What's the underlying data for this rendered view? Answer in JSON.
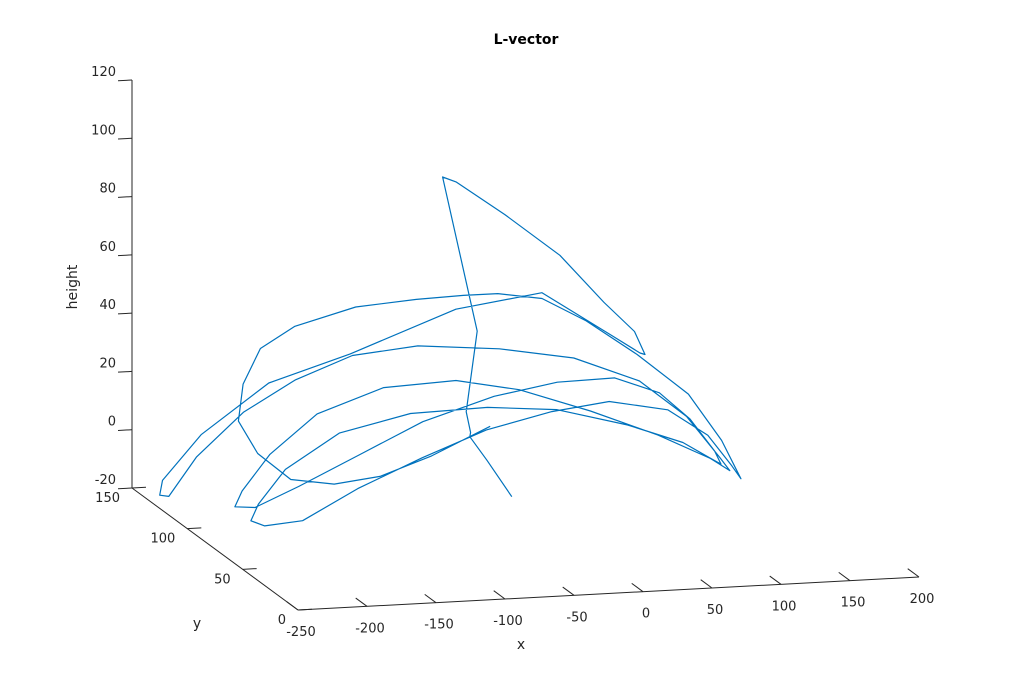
{
  "chart_data": {
    "type": "line",
    "projection": "3d",
    "title": "L-vector",
    "xlabel": "x",
    "ylabel": "y",
    "zlabel": "height",
    "xlim": [
      -250,
      200
    ],
    "ylim": [
      0,
      150
    ],
    "zlim": [
      -20,
      120
    ],
    "xticks": [
      "-250",
      "-200",
      "-150",
      "-100",
      "-50",
      "0",
      "50",
      "100",
      "150",
      "200"
    ],
    "yticks": [
      "0",
      "50",
      "100",
      "150"
    ],
    "zticks": [
      "-20",
      "0",
      "20",
      "40",
      "60",
      "80",
      "100",
      "120"
    ],
    "grid": false,
    "color": "#0072BD",
    "series": [
      {
        "values": [
          [
            -55,
            50,
            0
          ],
          [
            -65,
            60,
            10
          ],
          [
            -71,
            68,
            16
          ],
          [
            -72,
            66,
            18
          ],
          [
            -72,
            70,
            24
          ],
          [
            -60,
            75,
            50
          ],
          [
            -65,
            100,
            96
          ],
          [
            -55,
            100,
            94
          ],
          [
            -20,
            100,
            82
          ],
          [
            20,
            100,
            67
          ],
          [
            52,
            100,
            50
          ],
          [
            70,
            95,
            41
          ],
          [
            72,
            88,
            35
          ],
          [
            62,
            80,
            38
          ],
          [
            40,
            80,
            45
          ],
          [
            -5,
            85,
            59
          ],
          [
            -65,
            88,
            54
          ],
          [
            -140,
            90,
            40
          ],
          [
            -195,
            95,
            30
          ],
          [
            -240,
            100,
            12
          ],
          [
            -268,
            100,
            -3
          ],
          [
            -270,
            100,
            -8
          ],
          [
            -265,
            98,
            -8
          ],
          [
            -245,
            98,
            5
          ],
          [
            -215,
            93,
            21
          ],
          [
            -180,
            90,
            32
          ],
          [
            -140,
            88,
            40
          ],
          [
            -95,
            85,
            43
          ],
          [
            -40,
            80,
            42
          ],
          [
            10,
            75,
            39
          ],
          [
            52,
            68,
            32
          ],
          [
            78,
            58,
            22
          ],
          [
            92,
            45,
            11
          ],
          [
            95,
            40,
            8
          ],
          [
            85,
            45,
            11
          ],
          [
            55,
            55,
            17
          ],
          [
            10,
            60,
            25
          ],
          [
            -40,
            62,
            33
          ],
          [
            -85,
            63,
            37
          ],
          [
            -135,
            66,
            35
          ],
          [
            -180,
            70,
            26
          ],
          [
            -212,
            73,
            12
          ],
          [
            -232,
            73,
            0
          ],
          [
            -238,
            72,
            -5
          ],
          [
            -225,
            70,
            -5
          ],
          [
            -195,
            68,
            2
          ],
          [
            -150,
            68,
            12
          ],
          [
            -105,
            68,
            22
          ],
          [
            -55,
            66,
            30
          ],
          [
            -10,
            65,
            34
          ],
          [
            30,
            63,
            35
          ],
          [
            60,
            60,
            30
          ],
          [
            78,
            55,
            22
          ],
          [
            92,
            50,
            12
          ],
          [
            95,
            48,
            8
          ],
          [
            85,
            46,
            11
          ],
          [
            65,
            45,
            17
          ],
          [
            25,
            45,
            24
          ],
          [
            -25,
            47,
            30
          ],
          [
            -75,
            47,
            32
          ],
          [
            -130,
            48,
            31
          ],
          [
            -180,
            50,
            25
          ],
          [
            -215,
            55,
            12
          ],
          [
            -233,
            57,
            0
          ],
          [
            -240,
            55,
            -5
          ],
          [
            -230,
            55,
            -7
          ],
          [
            -205,
            52,
            -5
          ],
          [
            -165,
            52,
            5
          ],
          [
            -120,
            50,
            15
          ],
          [
            -75,
            48,
            24
          ],
          [
            -30,
            45,
            30
          ],
          [
            10,
            43,
            33
          ],
          [
            50,
            40,
            30
          ],
          [
            75,
            35,
            22
          ],
          [
            90,
            32,
            12
          ],
          [
            95,
            30,
            8
          ],
          [
            85,
            35,
            20
          ],
          [
            65,
            40,
            35
          ],
          [
            40,
            55,
            45
          ],
          [
            15,
            70,
            53
          ],
          [
            -5,
            85,
            57
          ],
          [
            -25,
            100,
            55
          ],
          [
            -50,
            100,
            55
          ],
          [
            -80,
            105,
            53
          ],
          [
            -120,
            110,
            50
          ],
          [
            -160,
            115,
            43
          ],
          [
            -185,
            115,
            36
          ],
          [
            -200,
            112,
            25
          ],
          [
            -205,
            110,
            13
          ],
          [
            -195,
            105,
            3
          ],
          [
            -175,
            100,
            -5
          ],
          [
            -150,
            92,
            -5
          ],
          [
            -120,
            88,
            -2
          ],
          [
            -85,
            85,
            5
          ],
          [
            -45,
            82,
            15
          ]
        ]
      }
    ]
  }
}
